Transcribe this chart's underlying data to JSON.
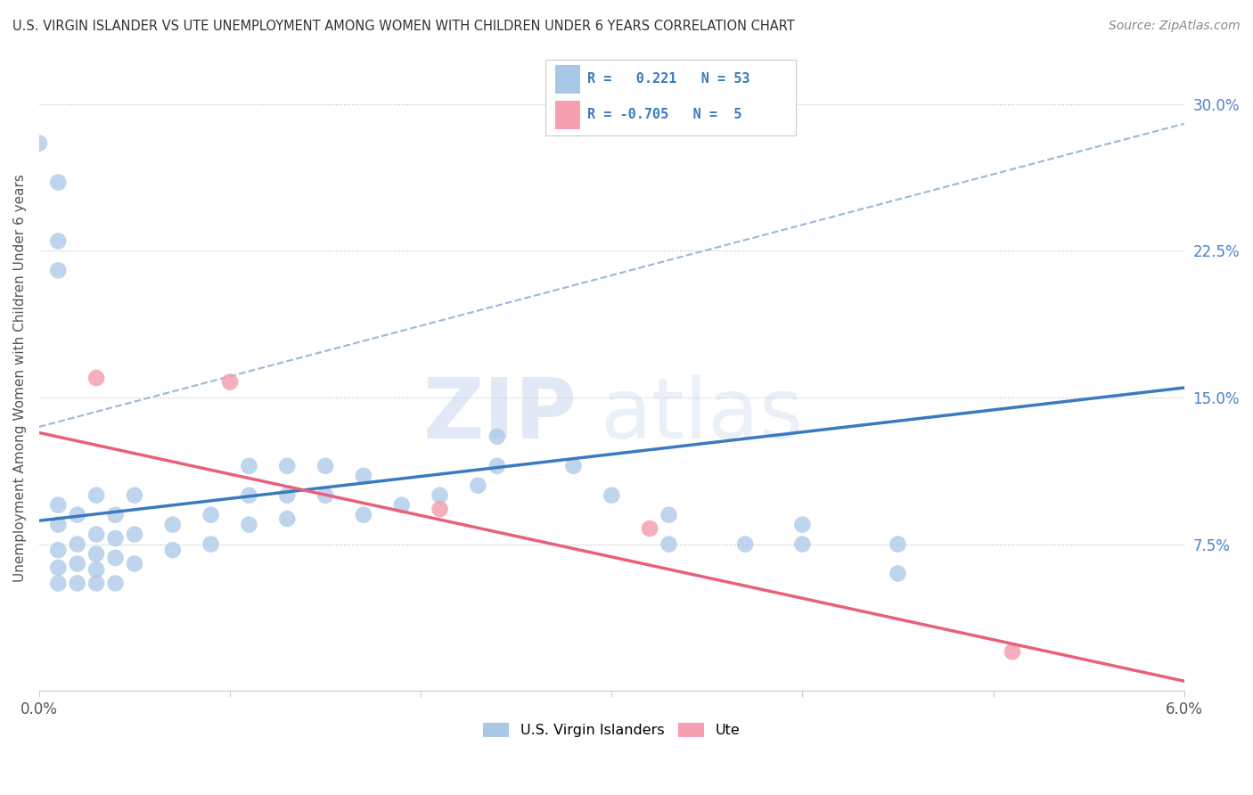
{
  "title": "U.S. VIRGIN ISLANDER VS UTE UNEMPLOYMENT AMONG WOMEN WITH CHILDREN UNDER 6 YEARS CORRELATION CHART",
  "source": "Source: ZipAtlas.com",
  "ylabel": "Unemployment Among Women with Children Under 6 years",
  "xlim": [
    0.0,
    0.06
  ],
  "ylim": [
    0.0,
    0.32
  ],
  "xticks": [
    0.0,
    0.01,
    0.02,
    0.03,
    0.04,
    0.05,
    0.06
  ],
  "yticks": [
    0.0,
    0.075,
    0.15,
    0.225,
    0.3
  ],
  "yticklabels": [
    "",
    "7.5%",
    "15.0%",
    "22.5%",
    "30.0%"
  ],
  "watermark_zip": "ZIP",
  "watermark_atlas": "atlas",
  "color_blue": "#a8c8e8",
  "color_pink": "#f4a0b0",
  "line_blue": "#3a7abf",
  "line_pink": "#e8607a",
  "line_gray": "#9ab8d8",
  "blue_scatter_x": [
    0.001,
    0.001,
    0.001,
    0.001,
    0.001,
    0.002,
    0.002,
    0.002,
    0.002,
    0.003,
    0.003,
    0.003,
    0.003,
    0.003,
    0.004,
    0.004,
    0.004,
    0.004,
    0.005,
    0.005,
    0.005,
    0.007,
    0.007,
    0.009,
    0.009,
    0.011,
    0.011,
    0.011,
    0.013,
    0.013,
    0.013,
    0.015,
    0.015,
    0.017,
    0.017,
    0.019,
    0.021,
    0.023,
    0.028,
    0.03,
    0.033,
    0.033,
    0.037,
    0.04,
    0.04,
    0.0,
    0.001,
    0.001,
    0.001,
    0.024,
    0.024,
    0.045,
    0.045
  ],
  "blue_scatter_y": [
    0.055,
    0.063,
    0.072,
    0.085,
    0.095,
    0.055,
    0.065,
    0.075,
    0.09,
    0.055,
    0.062,
    0.07,
    0.08,
    0.1,
    0.055,
    0.068,
    0.078,
    0.09,
    0.065,
    0.08,
    0.1,
    0.072,
    0.085,
    0.075,
    0.09,
    0.085,
    0.1,
    0.115,
    0.088,
    0.1,
    0.115,
    0.1,
    0.115,
    0.09,
    0.11,
    0.095,
    0.1,
    0.105,
    0.115,
    0.1,
    0.075,
    0.09,
    0.075,
    0.075,
    0.085,
    0.28,
    0.26,
    0.23,
    0.215,
    0.115,
    0.13,
    0.075,
    0.06
  ],
  "pink_scatter_x": [
    0.003,
    0.01,
    0.021,
    0.032,
    0.051
  ],
  "pink_scatter_y": [
    0.16,
    0.158,
    0.093,
    0.083,
    0.02
  ],
  "blue_line_x0": 0.0,
  "blue_line_x1": 0.06,
  "blue_line_y0": 0.087,
  "blue_line_y1": 0.155,
  "pink_line_x0": 0.0,
  "pink_line_x1": 0.06,
  "pink_line_y0": 0.132,
  "pink_line_y1": 0.005,
  "gray_line_x0": 0.0,
  "gray_line_x1": 0.06,
  "gray_line_y0": 0.135,
  "gray_line_y1": 0.29
}
